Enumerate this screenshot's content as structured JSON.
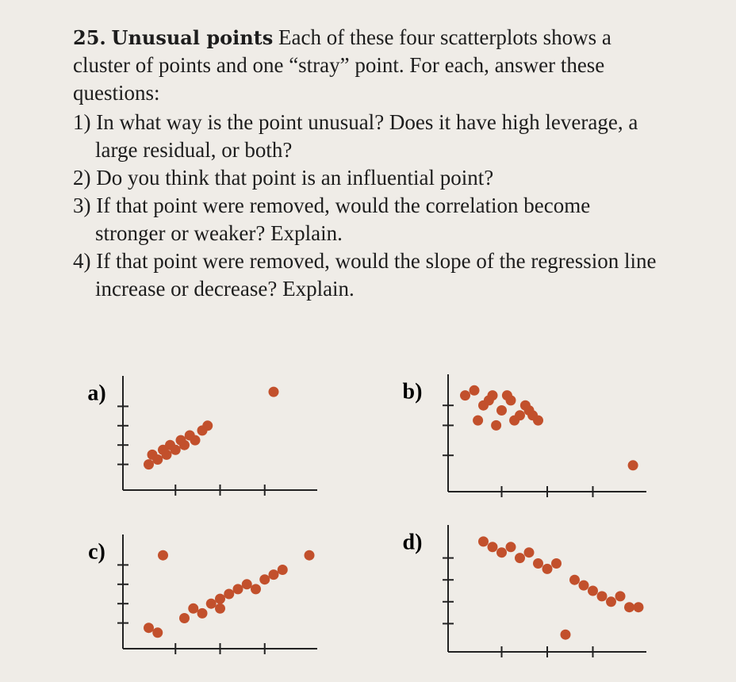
{
  "problem": {
    "number": "25.",
    "heading": "Unusual points",
    "intro": "Each of these four scatterplots shows a cluster of points and one “stray” point. For each, answer these questions:",
    "questions": [
      "1) In what way is the point unusual? Does it have high leverage, a large residual, or both?",
      "2) Do you think that point is an influential point?",
      "3) If that point were removed, would the correlation become stronger or weaker? Explain.",
      "4) If that point were removed, would the slope of the regression line increase or decrease? Explain."
    ]
  },
  "plots": [
    {
      "label": "a)",
      "type": "scatter",
      "color": "#c2502c",
      "x": [
        1,
        1.2,
        1.5,
        1.8,
        2,
        2.2,
        2.5,
        2.8,
        3,
        3.3,
        3.6,
        4,
        4.3,
        8
      ],
      "y": [
        2,
        3,
        2.5,
        3.5,
        3,
        4,
        3.5,
        4.5,
        4,
        5,
        4.5,
        5.5,
        6,
        9.5
      ],
      "xlim": [
        0,
        10
      ],
      "ylim": [
        0,
        10
      ],
      "xticks": [
        2.5,
        5,
        7.5
      ],
      "yticks": [
        2,
        4,
        6,
        8
      ]
    },
    {
      "label": "b)",
      "type": "scatter",
      "color": "#c2502c",
      "x": [
        0.5,
        1,
        1.5,
        2,
        2.5,
        3,
        3.5,
        4,
        4.5,
        1.2,
        2.2,
        3.2,
        4.2,
        1.8,
        2.8,
        3.8,
        9.7
      ],
      "y": [
        9,
        9.5,
        8,
        9,
        7.5,
        8.5,
        7,
        7.5,
        6.5,
        6.5,
        6,
        6.5,
        7,
        8.5,
        9,
        8,
        2
      ],
      "xlim": [
        0,
        10
      ],
      "ylim": [
        0,
        10
      ],
      "xticks": [
        2.5,
        5,
        7.5
      ],
      "yticks": [
        3,
        6,
        8
      ]
    },
    {
      "label": "c)",
      "type": "scatter",
      "color": "#c2502c",
      "x": [
        1,
        1.5,
        3,
        3.5,
        4,
        4.5,
        5,
        5,
        5.5,
        6,
        6.5,
        7,
        7.5,
        8,
        8.5,
        10,
        1.8
      ],
      "y": [
        1.5,
        1,
        2.5,
        3.5,
        3,
        4,
        4.5,
        3.5,
        5,
        5.5,
        6,
        5.5,
        6.5,
        7,
        7.5,
        9,
        9
      ],
      "xlim": [
        0,
        10
      ],
      "ylim": [
        0,
        10
      ],
      "xticks": [
        2.5,
        5,
        7.5
      ],
      "yticks": [
        2,
        4,
        6,
        8
      ]
    },
    {
      "label": "d)",
      "type": "scatter",
      "color": "#c2502c",
      "x": [
        1.5,
        2,
        2.5,
        3,
        3.5,
        4,
        4.5,
        5,
        5.5,
        6.5,
        7,
        7.5,
        8,
        8.5,
        9,
        9.5,
        10,
        6
      ],
      "y": [
        9.5,
        9,
        8.5,
        9,
        8,
        8.5,
        7.5,
        7,
        7.5,
        6,
        5.5,
        5,
        4.5,
        4,
        4.5,
        3.5,
        3.5,
        1
      ],
      "xlim": [
        0,
        10
      ],
      "ylim": [
        0,
        10
      ],
      "xticks": [
        2.5,
        5,
        7.5
      ],
      "yticks": [
        2,
        4,
        6,
        8
      ]
    }
  ]
}
